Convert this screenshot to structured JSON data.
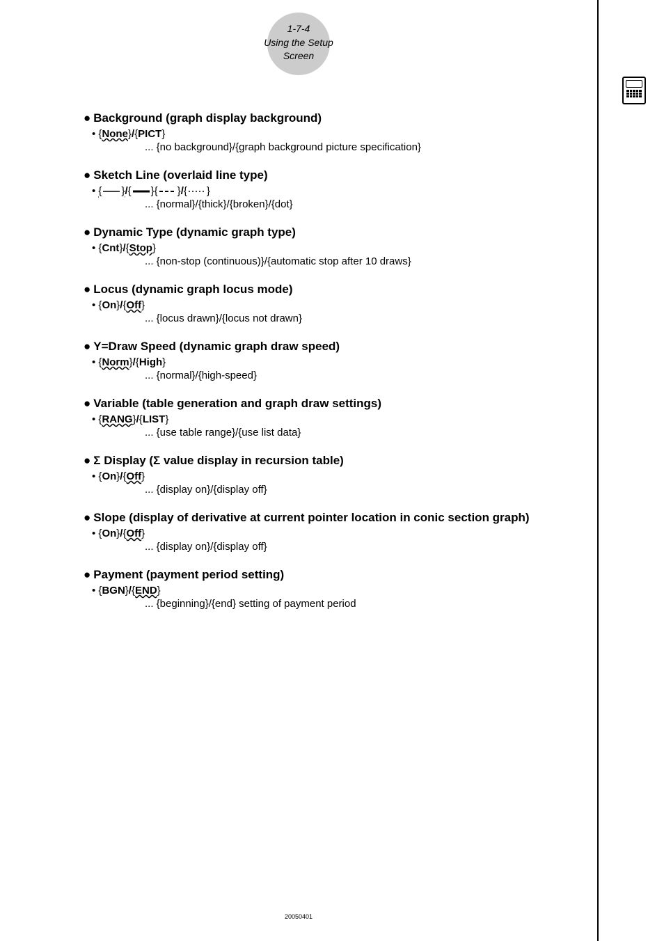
{
  "header": {
    "page_ref": "1-7-4",
    "section": "Using the Setup Screen"
  },
  "sections": [
    {
      "title": "Background (graph display background)",
      "opt_prefix": "• {",
      "opt_a": "None",
      "opt_mid": "}/{",
      "opt_b": "PICT",
      "opt_suffix": "}",
      "wavy_on": "a",
      "desc": "... {no background}/{graph background picture specification}"
    },
    {
      "title": "Sketch Line (overlaid line type)",
      "svg_lines": true,
      "desc": "... {normal}/{thick}/{broken}/{dot}"
    },
    {
      "title": "Dynamic Type (dynamic graph type)",
      "opt_prefix": "• {",
      "opt_a": "Cnt",
      "opt_mid": "}/{",
      "opt_b": "Stop",
      "opt_suffix": "}",
      "wavy_on": "b",
      "desc": "... {non-stop (continuous)}/{automatic stop after 10 draws}"
    },
    {
      "title": "Locus (dynamic graph locus mode)",
      "opt_prefix": "• {",
      "opt_a": "On",
      "opt_mid": "}/{",
      "opt_b": "Off",
      "opt_suffix": "}",
      "wavy_on": "b",
      "desc": "... {locus drawn}/{locus not drawn}"
    },
    {
      "title": "Y=Draw Speed (dynamic graph draw speed)",
      "opt_prefix": "• {",
      "opt_a": "Norm",
      "opt_mid": "}/{",
      "opt_b": "High",
      "opt_suffix": "}",
      "wavy_on": "a",
      "desc": "... {normal}/{high-speed}"
    },
    {
      "title": "Variable (table generation and graph draw settings)",
      "opt_prefix": "• {",
      "opt_a": "RANG",
      "opt_mid": "}/{",
      "opt_b": "LIST",
      "opt_suffix": "}",
      "wavy_on": "a",
      "desc": "... {use table range}/{use list data}"
    },
    {
      "title": "Σ Display (Σ value display in recursion table)",
      "opt_prefix": "• {",
      "opt_a": "On",
      "opt_mid": "}/{",
      "opt_b": "Off",
      "opt_suffix": "}",
      "wavy_on": "b",
      "desc": "... {display on}/{display off}"
    },
    {
      "title": "Slope (display of derivative at current pointer location in conic section graph)",
      "opt_prefix": "• {",
      "opt_a": "On",
      "opt_mid": "}/{",
      "opt_b": "Off",
      "opt_suffix": "}",
      "wavy_on": "b",
      "desc": "... {display on}/{display off}"
    },
    {
      "title": "Payment (payment period setting)",
      "opt_prefix": "• {",
      "opt_a": "BGN",
      "opt_mid": "}/{",
      "opt_b": "END",
      "opt_suffix": "}",
      "wavy_on": "b",
      "desc": "... {beginning}/{end} setting of payment period"
    }
  ],
  "sketch_line": {
    "prefix": "• ",
    "styles": {
      "normal_dash": "0",
      "thick_width": 3,
      "broken_dash": "5,3",
      "dot_dash": "2,3"
    }
  },
  "footer": "20050401",
  "colors": {
    "circle_bg": "#cccccc",
    "text": "#000000"
  }
}
